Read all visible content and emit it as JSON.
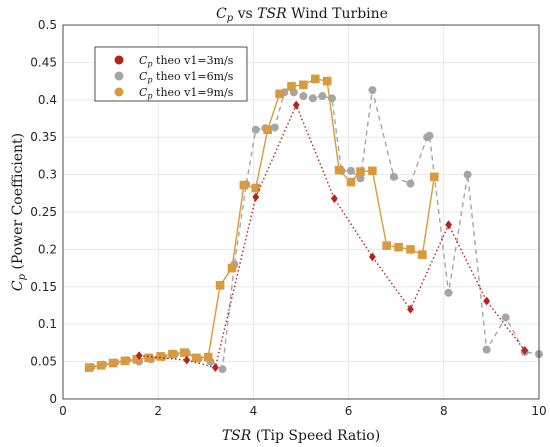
{
  "chart_data": {
    "type": "line",
    "title": "Cp vs TSR Wind Turbine",
    "xlabel": "TSR (Tip Speed Ratio)",
    "ylabel": "Cp (Power Coefficient)",
    "xlim": [
      0,
      10
    ],
    "ylim": [
      0,
      0.5
    ],
    "xticks": [
      "0",
      "2",
      "4",
      "6",
      "8",
      "10"
    ],
    "yticks": [
      "0",
      "0.05",
      "0.1",
      "0.15",
      "0.2",
      "0.25",
      "0.3",
      "0.35",
      "0.4",
      "0.45",
      "0.5"
    ],
    "grid": true,
    "legend_position": "top-left",
    "series": [
      {
        "name": "Cp theo v1=3m/s",
        "color": "#b5231c",
        "marker": "diamond",
        "line": "dotted",
        "x": [
          1.6,
          2.6,
          3.2,
          4.05,
          4.9,
          5.7,
          6.5,
          7.3,
          8.1,
          8.9,
          9.7
        ],
        "y": [
          0.058,
          0.052,
          0.042,
          0.27,
          0.393,
          0.268,
          0.19,
          0.12,
          0.233,
          0.131,
          0.065
        ]
      },
      {
        "name": "Cp theo v1=6m/s",
        "color": "#a5a5a5",
        "marker": "circle",
        "line": "dashed",
        "x": [
          0.6,
          0.85,
          1.1,
          1.35,
          1.6,
          1.85,
          2.1,
          2.35,
          2.6,
          2.85,
          3.1,
          3.35,
          3.6,
          3.85,
          4.05,
          4.25,
          4.45,
          4.65,
          4.85,
          5.05,
          5.25,
          5.45,
          5.65,
          5.85,
          6.05,
          6.25,
          6.5,
          6.95,
          7.3,
          7.65,
          7.7,
          8.1,
          8.5,
          8.9,
          9.3,
          9.7,
          10.0
        ],
        "y": [
          0.043,
          0.046,
          0.049,
          0.052,
          0.05,
          0.053,
          0.056,
          0.06,
          0.062,
          0.054,
          0.05,
          0.04,
          0.18,
          0.287,
          0.36,
          0.362,
          0.363,
          0.41,
          0.41,
          0.405,
          0.402,
          0.405,
          0.402,
          0.305,
          0.305,
          0.295,
          0.413,
          0.297,
          0.288,
          0.35,
          0.352,
          0.142,
          0.3,
          0.066,
          0.109,
          0.063,
          0.06
        ]
      },
      {
        "name": "Cp theo v1=9m/s",
        "color": "#d99a3d",
        "marker": "square",
        "line": "solid",
        "x": [
          0.55,
          0.8,
          1.05,
          1.3,
          1.55,
          1.8,
          2.05,
          2.3,
          2.55,
          2.8,
          3.05,
          3.3,
          3.55,
          3.8,
          4.05,
          4.3,
          4.55,
          4.8,
          5.05,
          5.3,
          5.55,
          5.8,
          6.05,
          6.25,
          6.5,
          6.8,
          7.05,
          7.3,
          7.55,
          7.8
        ],
        "y": [
          0.042,
          0.045,
          0.048,
          0.051,
          0.053,
          0.055,
          0.057,
          0.06,
          0.062,
          0.055,
          0.056,
          0.152,
          0.175,
          0.286,
          0.282,
          0.36,
          0.408,
          0.418,
          0.42,
          0.428,
          0.425,
          0.306,
          0.29,
          0.304,
          0.305,
          0.205,
          0.203,
          0.2,
          0.193,
          0.297
        ]
      }
    ]
  }
}
